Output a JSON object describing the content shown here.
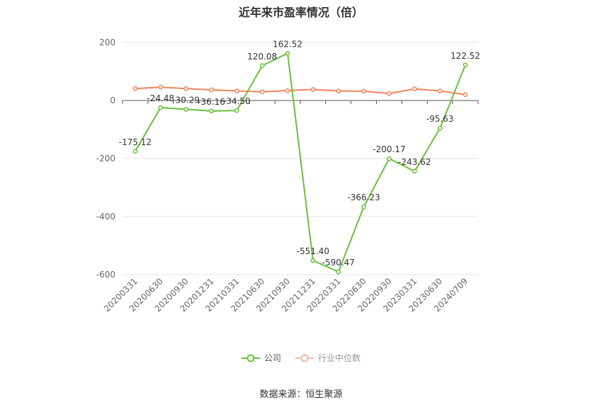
{
  "chart_data": {
    "type": "line",
    "title": "近年来市盈率情况（倍）",
    "categories": [
      "20200331",
      "20200630",
      "20200930",
      "20201231",
      "20210331",
      "20210630",
      "20210930",
      "20211231",
      "20220331",
      "20220630",
      "20220930",
      "20230331",
      "20230630",
      "20240709"
    ],
    "series": [
      {
        "name": "公司",
        "color": "#67c23a",
        "values": [
          -175.12,
          -24.48,
          -30.29,
          -36.16,
          -34.5,
          120.08,
          162.52,
          -551.4,
          -590.47,
          -366.23,
          -200.17,
          -243.62,
          -95.63,
          122.52
        ],
        "labels": [
          "-175.12",
          "-24.48",
          "-30.29",
          "-36.16",
          "-34.50",
          "120.08",
          "162.52",
          "-551.40",
          "-590.47",
          "-366.23",
          "-200.17",
          "-243.62",
          "-95.63",
          "122.52"
        ]
      },
      {
        "name": "行业中位数",
        "color": "#f0845a",
        "values": [
          41,
          46,
          41,
          37,
          33,
          30,
          34,
          38,
          33,
          32,
          24,
          40,
          33,
          20
        ]
      }
    ],
    "yticks": [
      "200",
      "0",
      "-200",
      "-400",
      "-600"
    ],
    "ylim": [
      -600,
      200
    ],
    "grid": true,
    "legend_position": "bottom"
  },
  "source": "数据来源：恒生聚源"
}
